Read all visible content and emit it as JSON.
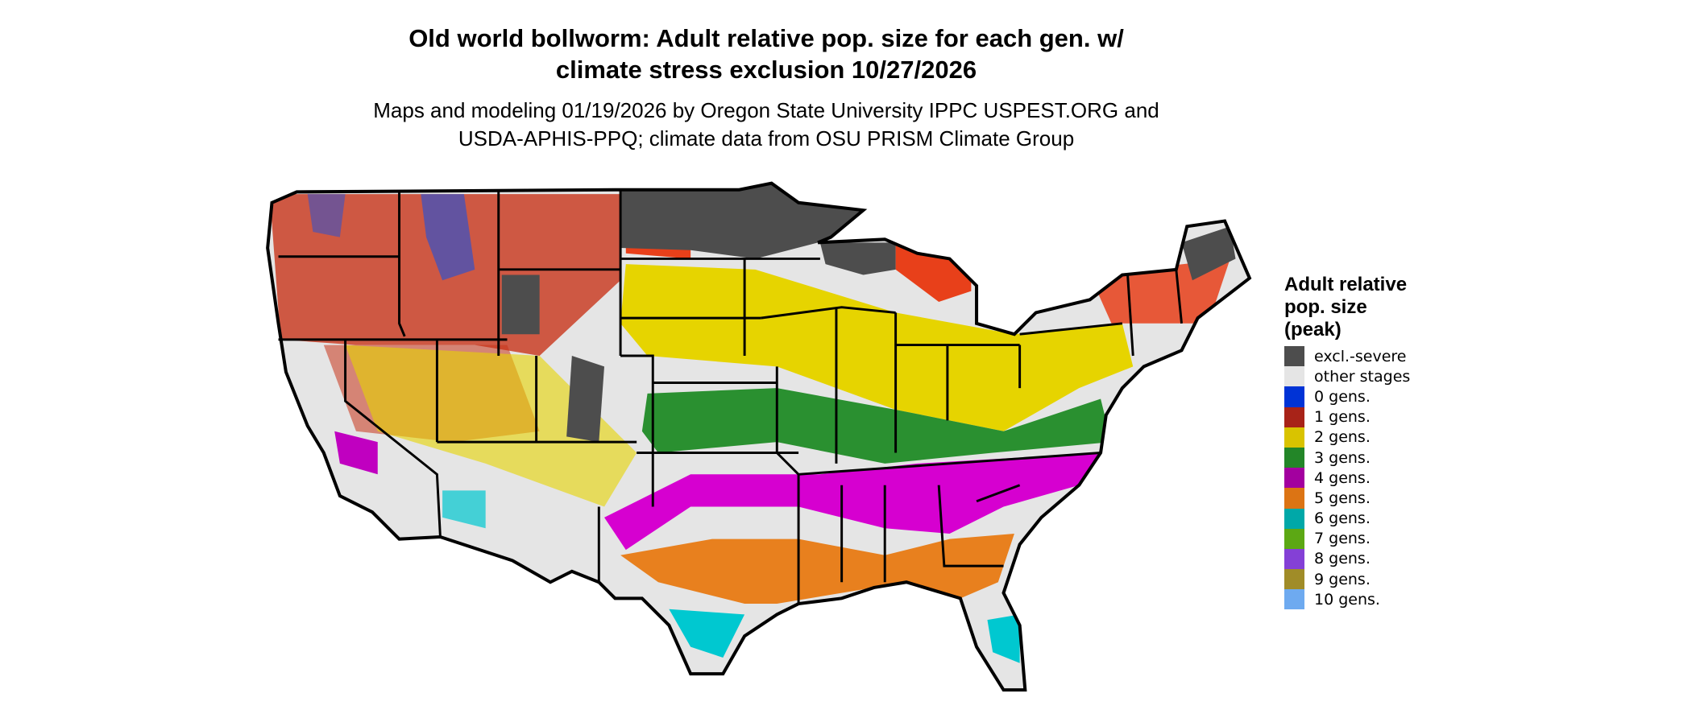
{
  "title": {
    "line1": "Old world bollworm: Adult relative pop. size for each gen. w/",
    "line2": "climate stress exclusion 10/27/2026"
  },
  "subtitle": {
    "line1": "Maps and modeling 01/19/2026 by Oregon State University IPPC USPEST.ORG and",
    "line2": "USDA-APHIS-PPQ; climate data from OSU PRISM Climate Group"
  },
  "legend": {
    "title_lines": [
      "Adult relative",
      "pop. size",
      "(peak)"
    ],
    "items": [
      {
        "label": "excl.-severe",
        "color": "#4d4d4d"
      },
      {
        "label": "other stages",
        "color": "#e5e5e5"
      },
      {
        "label": "0 gens.",
        "color": "#0033d6"
      },
      {
        "label": "1 gens.",
        "color": "#a82318"
      },
      {
        "label": "2 gens.",
        "color": "#d9c300"
      },
      {
        "label": "3 gens.",
        "color": "#238628"
      },
      {
        "label": "4 gens.",
        "color": "#a3009f"
      },
      {
        "label": "5 gens.",
        "color": "#dc7414"
      },
      {
        "label": "6 gens.",
        "color": "#00a8a8"
      },
      {
        "label": "7 gens.",
        "color": "#5ca814"
      },
      {
        "label": "8 gens.",
        "color": "#8440d6"
      },
      {
        "label": "9 gens.",
        "color": "#a08c28"
      },
      {
        "label": "10 gens.",
        "color": "#6eaaf0"
      }
    ]
  }
}
